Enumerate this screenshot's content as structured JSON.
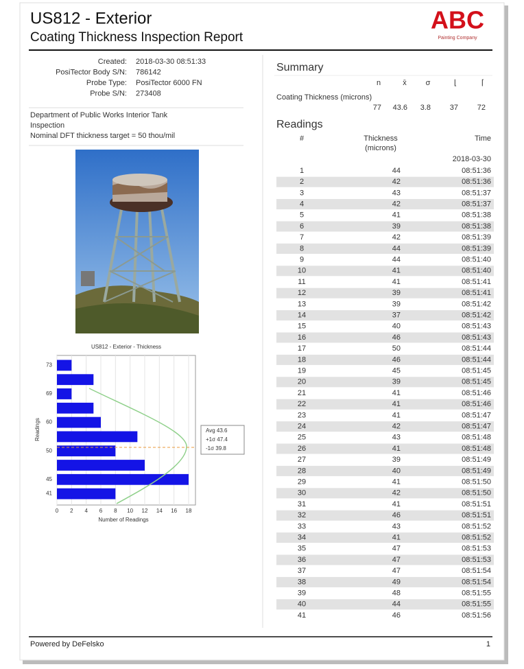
{
  "header": {
    "title": "US812 - Exterior",
    "subtitle": "Coating Thickness Inspection Report",
    "logo": "ABC",
    "logo_tagline": "Painting Company"
  },
  "info": [
    {
      "label": "Created:",
      "value": "2018-03-30 08:51:33"
    },
    {
      "label": "PosiTector Body S/N:",
      "value": "786142"
    },
    {
      "label": "Probe Type:",
      "value": "PosiTector 6000 FN"
    },
    {
      "label": "Probe S/N:",
      "value": "273408"
    }
  ],
  "notes": [
    "Department of Public Works Interior Tank",
    "Inspection",
    "Nominal DFT thickness target = 50 thou/mil"
  ],
  "histogram": {
    "type": "bar",
    "orientation": "horizontal",
    "title": "US812 - Exterior - Thickness",
    "x_label": "Number of Readings",
    "y_label": "Readings",
    "categories": [
      "73",
      null,
      "69",
      null,
      "60",
      null,
      "50",
      null,
      "45",
      "41"
    ],
    "values": [
      2,
      5,
      2,
      5,
      6,
      11,
      8,
      12,
      18,
      8
    ],
    "color": "#1414e6",
    "xlim": [
      0,
      18
    ],
    "xticks": [
      0,
      2,
      4,
      6,
      8,
      10,
      12,
      14,
      16,
      18
    ],
    "grid": true,
    "legend": [
      "Avg 43.6",
      "+1σ 47.4",
      "-1σ 39.8"
    ]
  },
  "summary": {
    "title": "Summary",
    "columns": [
      "n",
      "x̄",
      "σ",
      "⌊",
      "⌈"
    ],
    "row_label": "Coating Thickness (microns)",
    "values": [
      77,
      43.6,
      3.8,
      37,
      72
    ]
  },
  "readings": {
    "title": "Readings",
    "number_header": "#",
    "thickness_header": [
      "Thickness",
      "(microns)"
    ],
    "time_header": "Time",
    "date": "2018-03-30",
    "rows": [
      [
        1,
        44,
        "08:51:36"
      ],
      [
        2,
        42,
        "08:51:36"
      ],
      [
        3,
        43,
        "08:51:37"
      ],
      [
        4,
        42,
        "08:51:37"
      ],
      [
        5,
        41,
        "08:51:38"
      ],
      [
        6,
        39,
        "08:51:38"
      ],
      [
        7,
        42,
        "08:51:39"
      ],
      [
        8,
        44,
        "08:51:39"
      ],
      [
        9,
        44,
        "08:51:40"
      ],
      [
        10,
        41,
        "08:51:40"
      ],
      [
        11,
        41,
        "08:51:41"
      ],
      [
        12,
        39,
        "08:51:41"
      ],
      [
        13,
        39,
        "08:51:42"
      ],
      [
        14,
        37,
        "08:51:42"
      ],
      [
        15,
        40,
        "08:51:43"
      ],
      [
        16,
        46,
        "08:51:43"
      ],
      [
        17,
        50,
        "08:51:44"
      ],
      [
        18,
        46,
        "08:51:44"
      ],
      [
        19,
        45,
        "08:51:45"
      ],
      [
        20,
        39,
        "08:51:45"
      ],
      [
        21,
        41,
        "08:51:46"
      ],
      [
        22,
        41,
        "08:51:46"
      ],
      [
        23,
        41,
        "08:51:47"
      ],
      [
        24,
        42,
        "08:51:47"
      ],
      [
        25,
        43,
        "08:51:48"
      ],
      [
        26,
        41,
        "08:51:48"
      ],
      [
        27,
        39,
        "08:51:49"
      ],
      [
        28,
        40,
        "08:51:49"
      ],
      [
        29,
        41,
        "08:51:50"
      ],
      [
        30,
        42,
        "08:51:50"
      ],
      [
        31,
        41,
        "08:51:51"
      ],
      [
        32,
        46,
        "08:51:51"
      ],
      [
        33,
        43,
        "08:51:52"
      ],
      [
        34,
        41,
        "08:51:52"
      ],
      [
        35,
        47,
        "08:51:53"
      ],
      [
        36,
        47,
        "08:51:53"
      ],
      [
        37,
        47,
        "08:51:54"
      ],
      [
        38,
        49,
        "08:51:54"
      ],
      [
        39,
        48,
        "08:51:55"
      ],
      [
        40,
        44,
        "08:51:55"
      ],
      [
        41,
        46,
        "08:51:56"
      ]
    ]
  },
  "footer": {
    "left": "Powered by DeFelsko",
    "page": "1"
  }
}
